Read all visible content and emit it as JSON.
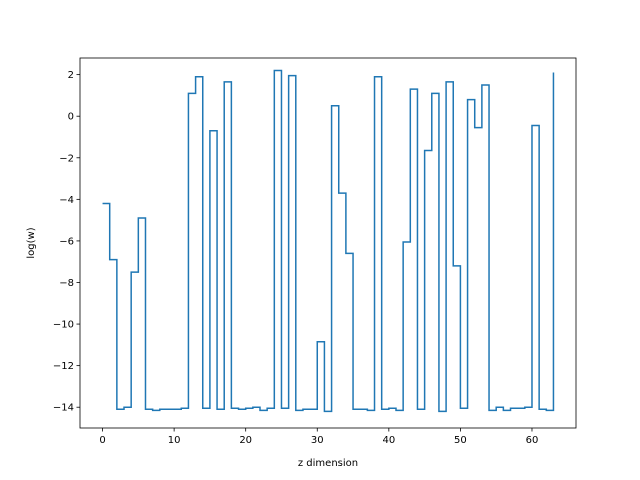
{
  "chart_data": {
    "type": "line",
    "drawstyle": "steps-post",
    "xlabel": "z dimension",
    "ylabel": "log(w)",
    "xlim": [
      -3.15,
      66.15
    ],
    "ylim": [
      -15.0,
      2.8
    ],
    "xticks": [
      0,
      10,
      20,
      30,
      40,
      50,
      60
    ],
    "yticks": [
      -14,
      -12,
      -10,
      -8,
      -6,
      -4,
      -2,
      0,
      2
    ],
    "ytick_labels": [
      "−14",
      "−12",
      "−10",
      "−8",
      "−6",
      "−4",
      "−2",
      "0",
      "2"
    ],
    "grid": false,
    "line_color": "#1f77b4",
    "series": [
      {
        "x": [
          0,
          1,
          2,
          3,
          4,
          5,
          6,
          7,
          8,
          9,
          10,
          11,
          12,
          13,
          14,
          15,
          16,
          17,
          18,
          19,
          20,
          21,
          22,
          23,
          24,
          25,
          26,
          27,
          28,
          29,
          30,
          31,
          32,
          33,
          34,
          35,
          36,
          37,
          38,
          39,
          40,
          41,
          42,
          43,
          44,
          45,
          46,
          47,
          48,
          49,
          50,
          51,
          52,
          53,
          54,
          55,
          56,
          57,
          58,
          59,
          60,
          61,
          62,
          63
        ],
        "y": [
          -4.2,
          -6.9,
          -14.1,
          -14.0,
          -7.5,
          -4.9,
          -14.1,
          -14.15,
          -14.1,
          -14.1,
          -14.1,
          -14.05,
          1.1,
          1.9,
          -14.05,
          -0.7,
          -14.1,
          1.65,
          -14.05,
          -14.1,
          -14.05,
          -14.0,
          -14.15,
          -14.05,
          2.2,
          -14.05,
          1.95,
          -14.15,
          -14.1,
          -14.1,
          -10.85,
          -14.2,
          0.5,
          -3.7,
          -6.6,
          -14.1,
          -14.1,
          -14.15,
          1.9,
          -14.1,
          -14.05,
          -14.15,
          -6.05,
          1.3,
          -14.1,
          -1.65,
          1.1,
          -14.2,
          1.65,
          -7.2,
          -14.05,
          0.8,
          -0.55,
          1.5,
          -14.15,
          -14.0,
          -14.15,
          -14.05,
          -14.05,
          -14.0,
          -0.45,
          -14.1,
          -14.15,
          2.1
        ]
      }
    ]
  }
}
